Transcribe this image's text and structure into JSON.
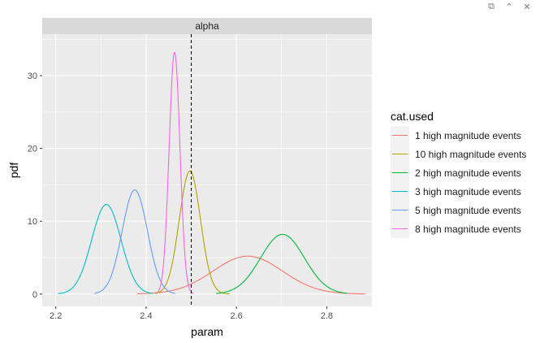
{
  "viewer": {
    "buttons": [
      {
        "name": "popout-icon",
        "glyph": "⧉"
      },
      {
        "name": "collapse-icon",
        "glyph": "⌃"
      },
      {
        "name": "close-icon",
        "glyph": "✕"
      }
    ]
  },
  "chart_data": {
    "type": "line",
    "facet": "alpha",
    "xlabel": "param",
    "ylabel": "pdf",
    "xlim": [
      2.17,
      2.9
    ],
    "ylim": [
      -1.7,
      35.7
    ],
    "x_ticks": [
      2.2,
      2.4,
      2.6,
      2.8
    ],
    "x_tick_labels": [
      "2.2",
      "2.4",
      "2.6",
      "2.8"
    ],
    "y_ticks": [
      0,
      10,
      20,
      30
    ],
    "y_tick_labels": [
      "0",
      "10",
      "20",
      "30"
    ],
    "grid": true,
    "legend_position": "right",
    "legend_title": "cat.used",
    "reference_line": {
      "x": 2.5,
      "style": "dashed"
    },
    "series": [
      {
        "name": "1 high magnitude events",
        "color": "#F8766D",
        "mean": 2.625,
        "sd": 0.077,
        "peak": 5.2,
        "x_range": [
          2.38,
          2.885
        ]
      },
      {
        "name": "10 high magnitude events",
        "color": "#B79F00",
        "mean": 2.497,
        "sd": 0.0235,
        "peak": 16.9,
        "x_range": [
          2.42,
          2.585
        ]
      },
      {
        "name": "2 high magnitude events",
        "color": "#00BA38",
        "mean": 2.702,
        "sd": 0.0485,
        "peak": 8.2,
        "x_range": [
          2.555,
          2.845
        ]
      },
      {
        "name": "3 high magnitude events",
        "color": "#00BFC4",
        "mean": 2.312,
        "sd": 0.0325,
        "peak": 12.3,
        "x_range": [
          2.205,
          2.415
        ]
      },
      {
        "name": "5 high magnitude events",
        "color": "#619CFF",
        "mean": 2.375,
        "sd": 0.028,
        "peak": 14.3,
        "x_range": [
          2.285,
          2.465
        ]
      },
      {
        "name": "8 high magnitude events",
        "color": "#F564E3",
        "mean": 2.463,
        "sd": 0.012,
        "peak": 33.2,
        "x_range": [
          2.425,
          2.505
        ]
      }
    ]
  }
}
